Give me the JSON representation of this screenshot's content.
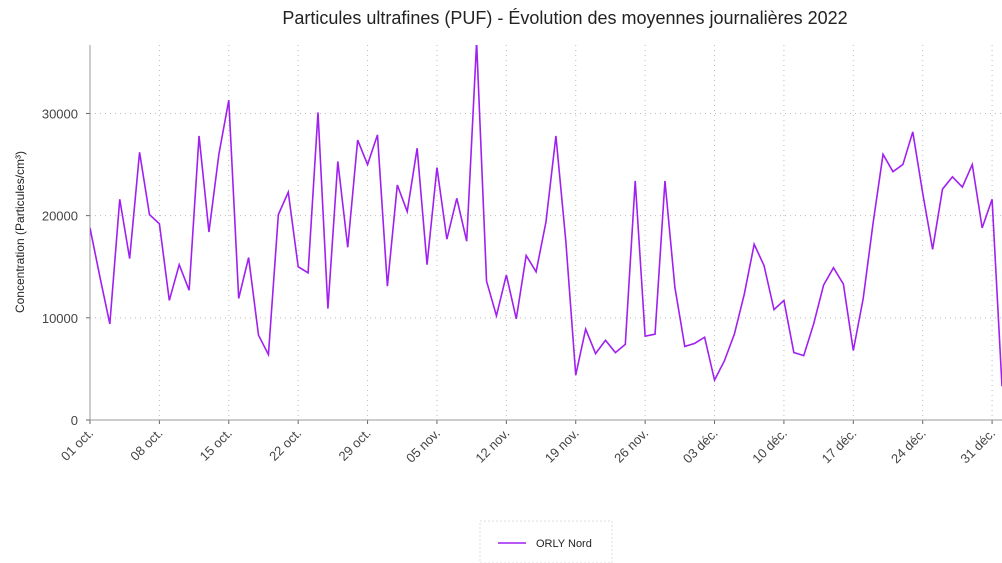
{
  "chart_data": {
    "type": "line",
    "title": "Particules ultrafines (PUF)  - Évolution des moyennes journalières 2022",
    "y_label": "Concentration (Particules/cm³)",
    "categories": [
      "01 oct.",
      null,
      null,
      null,
      null,
      null,
      null,
      "08 oct.",
      null,
      null,
      null,
      null,
      null,
      null,
      "15 oct.",
      null,
      null,
      null,
      null,
      null,
      null,
      "22 oct.",
      null,
      null,
      null,
      null,
      null,
      null,
      "29 oct.",
      null,
      null,
      null,
      null,
      null,
      null,
      "05 nov.",
      null,
      null,
      null,
      null,
      null,
      null,
      "12 nov.",
      null,
      null,
      null,
      null,
      null,
      null,
      "19 nov.",
      null,
      null,
      null,
      null,
      null,
      null,
      "26 nov.",
      null,
      null,
      null,
      null,
      null,
      null,
      "03 déc.",
      null,
      null,
      null,
      null,
      null,
      null,
      "10 déc.",
      null,
      null,
      null,
      null,
      null,
      null,
      "17 déc.",
      null,
      null,
      null,
      null,
      null,
      null,
      "24 déc.",
      null,
      null,
      null,
      null,
      null,
      null,
      "31 déc.",
      null
    ],
    "series": [
      {
        "name": "ORLY Nord",
        "color": "#a020f0",
        "values": [
          18800,
          14000,
          9400,
          21600,
          15800,
          26200,
          20100,
          19200,
          11700,
          15200,
          12700,
          27800,
          18400,
          26000,
          31300,
          11900,
          15900,
          8300,
          6400,
          20100,
          22300,
          15000,
          14400,
          30100,
          10900,
          25300,
          16900,
          27400,
          25000,
          27900,
          13100,
          23000,
          20400,
          26600,
          15200,
          24700,
          17700,
          21700,
          17500,
          37000,
          13600,
          10200,
          14200,
          9900,
          16100,
          14500,
          19400,
          27800,
          17500,
          4400,
          8900,
          6500,
          7800,
          6600,
          7400,
          23400,
          8200,
          8400,
          23400,
          13000,
          7200,
          7500,
          8100,
          3900,
          5800,
          8400,
          12300,
          17200,
          15100,
          10800,
          11700,
          6600,
          6300,
          9400,
          13200,
          14900,
          13300,
          6800,
          11900,
          19300,
          26000,
          24300,
          25000,
          28200,
          22200,
          16700,
          22600,
          23800,
          22800,
          25000,
          18800,
          21600,
          3300
        ]
      }
    ],
    "ylim": [
      0,
      36700
    ],
    "yticks": [
      0,
      10000,
      20000,
      30000
    ],
    "grid": true,
    "legend": "bottom"
  }
}
